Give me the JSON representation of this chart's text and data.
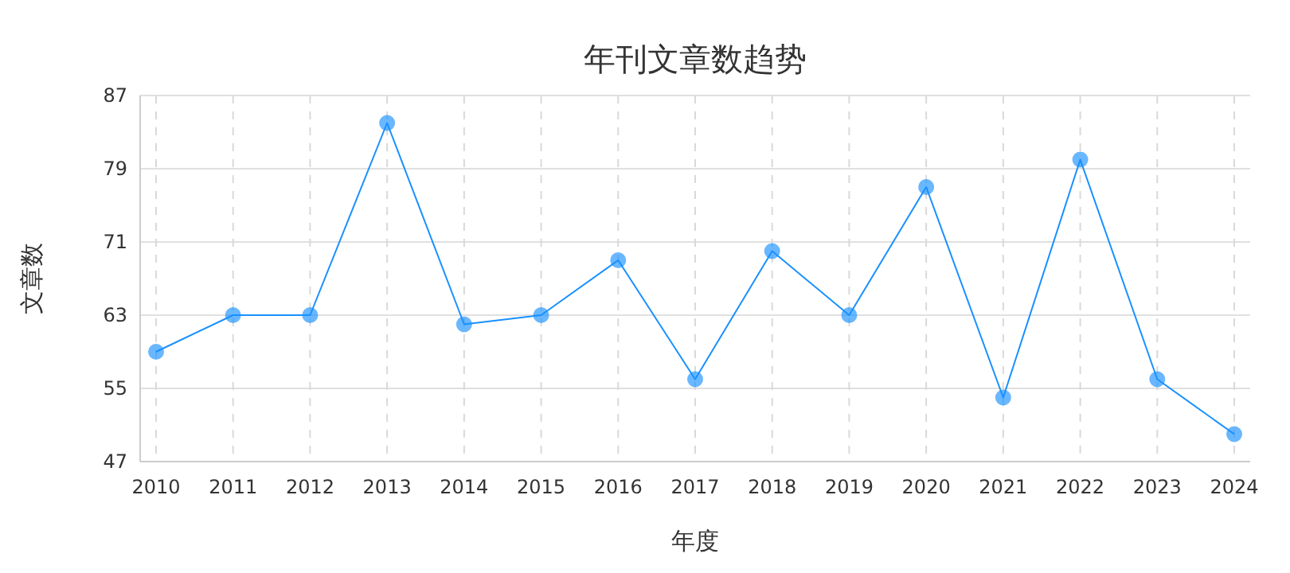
{
  "chart_data": {
    "type": "line",
    "title": "年刊文章数趋势",
    "xlabel": "年度",
    "ylabel": "文章数",
    "categories": [
      "2010",
      "2011",
      "2012",
      "2013",
      "2014",
      "2015",
      "2016",
      "2017",
      "2018",
      "2019",
      "2020",
      "2021",
      "2022",
      "2023",
      "2024"
    ],
    "series": [
      {
        "color": "#1890ff",
        "values": [
          59,
          63,
          63,
          84,
          62,
          63,
          69,
          56,
          70,
          63,
          77,
          54,
          80,
          56,
          50
        ]
      }
    ],
    "ylim": [
      47,
      87
    ],
    "yticks": [
      47,
      55,
      63,
      71,
      79,
      87
    ],
    "grid": true,
    "marker": "circle",
    "line_style": "solid"
  }
}
